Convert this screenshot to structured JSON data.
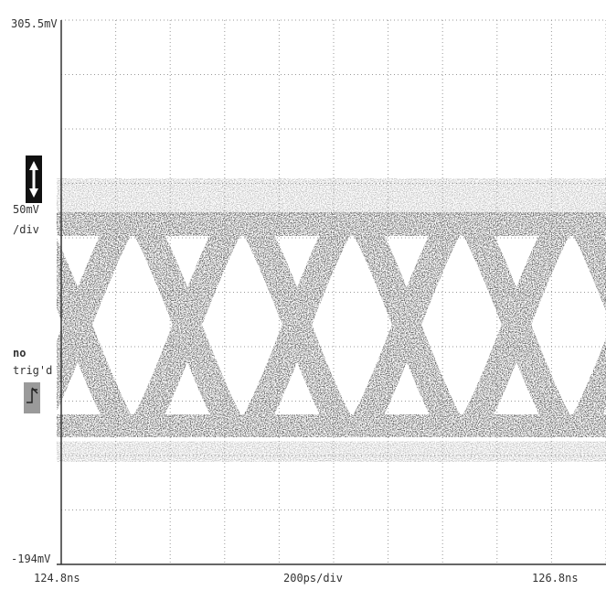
{
  "scope": {
    "y_max_label": "305.5mV",
    "y_scale": "50mV",
    "y_scale_unit": "/div",
    "trigger_status": "no",
    "trigger_label": "trig'd",
    "y_min_label": "-194mV",
    "x_start": "124.8ns",
    "x_scale": "200ps/div",
    "x_end": "126.8ns"
  }
}
